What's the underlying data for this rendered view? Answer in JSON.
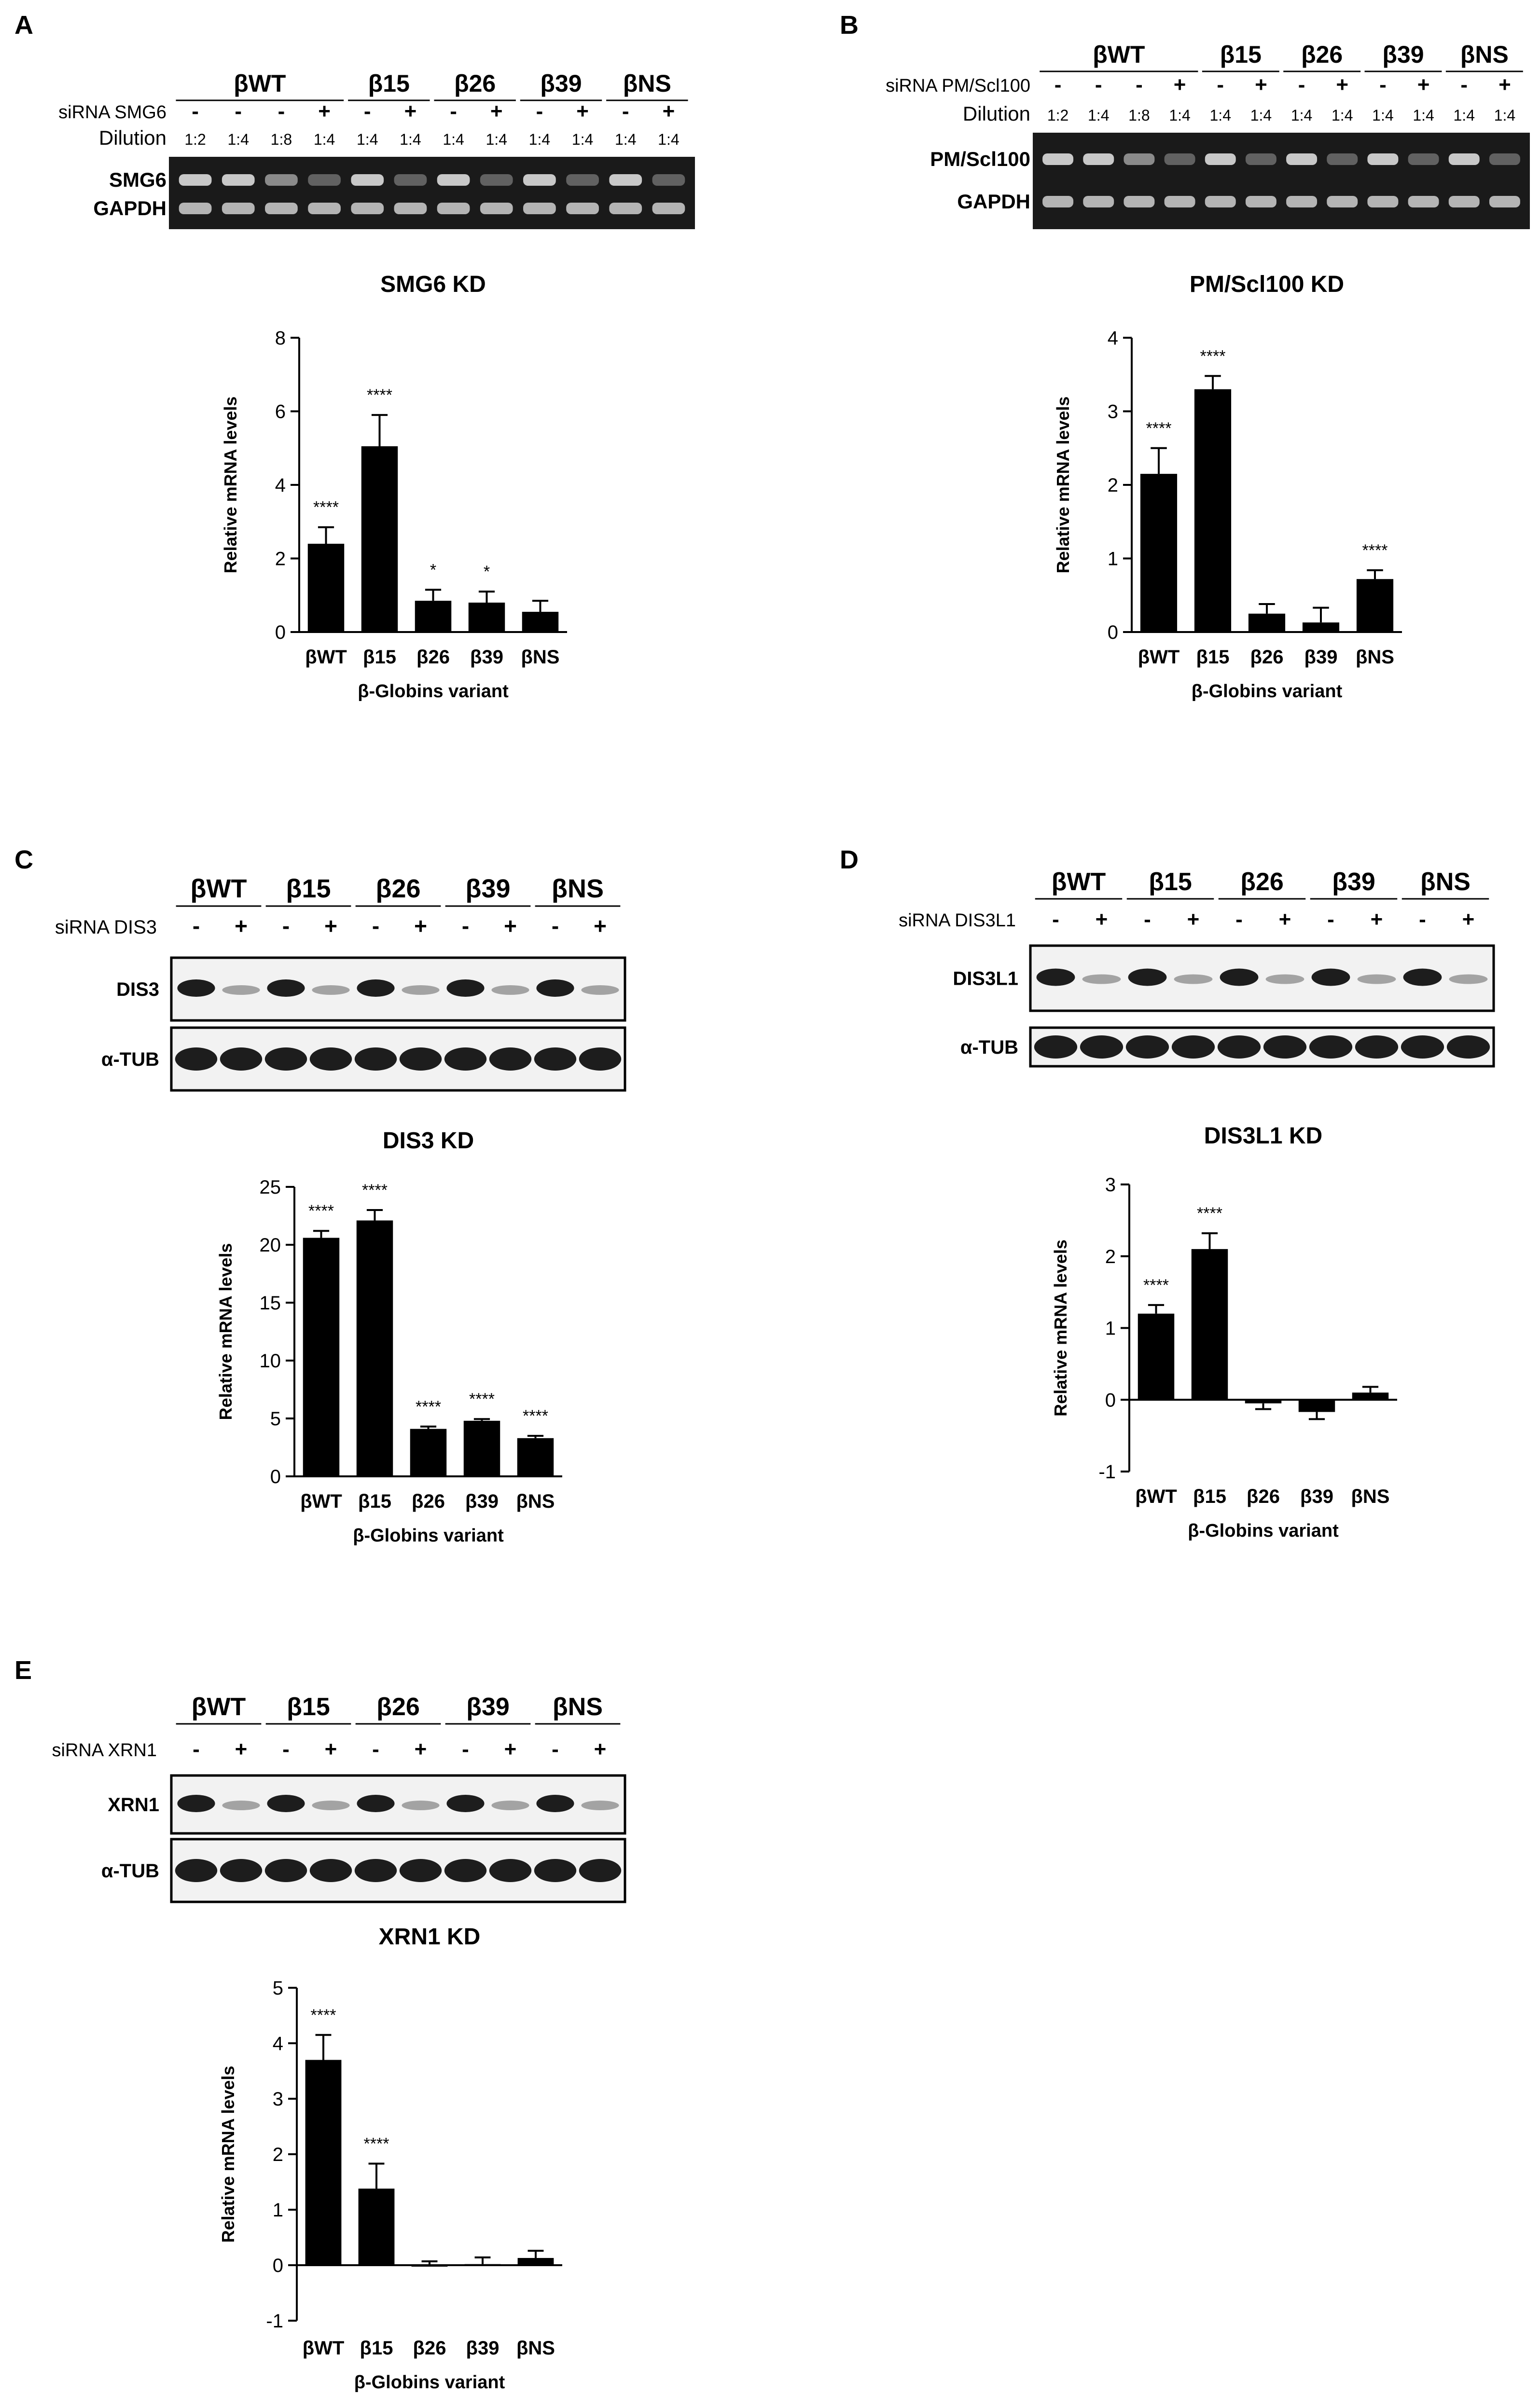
{
  "panels": [
    {
      "letter": "A",
      "blot": {
        "kind": "gel",
        "groups": [
          "βWT",
          "β15",
          "β26",
          "β39",
          "βNS"
        ],
        "treatment_label": "siRNA SMG6",
        "treatment": [
          "-",
          "-",
          "-",
          "+",
          "-",
          "+",
          "-",
          "+",
          "-",
          "+",
          "-",
          "+"
        ],
        "dilution_label": "Dilution",
        "dilutions": [
          "1:2",
          "1:4",
          "1:8",
          "1:4",
          "1:4",
          "1:4",
          "1:4",
          "1:4",
          "1:4",
          "1:4",
          "1:4",
          "1:4"
        ],
        "bands": [
          "SMG6",
          "GAPDH"
        ]
      }
    },
    {
      "letter": "B",
      "blot": {
        "kind": "gel",
        "groups": [
          "βWT",
          "β15",
          "β26",
          "β39",
          "βNS"
        ],
        "treatment_label": "siRNA PM/Scl100",
        "treatment": [
          "-",
          "-",
          "-",
          "+",
          "-",
          "+",
          "-",
          "+",
          "-",
          "+",
          "-",
          "+"
        ],
        "dilution_label": "Dilution",
        "dilutions": [
          "1:2",
          "1:4",
          "1:8",
          "1:4",
          "1:4",
          "1:4",
          "1:4",
          "1:4",
          "1:4",
          "1:4",
          "1:4",
          "1:4"
        ],
        "bands": [
          "PM/Scl100",
          "GAPDH"
        ]
      }
    },
    {
      "letter": "C",
      "blot": {
        "kind": "western",
        "groups": [
          "βWT",
          "β15",
          "β26",
          "β39",
          "βNS"
        ],
        "treatment_label": "siRNA DIS3",
        "treatment": [
          "-",
          "+",
          "-",
          "+",
          "-",
          "+",
          "-",
          "+",
          "-",
          "+"
        ],
        "bands": [
          "DIS3",
          "α-TUB"
        ]
      }
    },
    {
      "letter": "D",
      "blot": {
        "kind": "western",
        "groups": [
          "βWT",
          "β15",
          "β26",
          "β39",
          "βNS"
        ],
        "treatment_label": "siRNA DIS3L1",
        "treatment": [
          "-",
          "+",
          "-",
          "+",
          "-",
          "+",
          "-",
          "+",
          "-",
          "+"
        ],
        "bands": [
          "DIS3L1",
          "α-TUB"
        ]
      }
    },
    {
      "letter": "E",
      "blot": {
        "kind": "western",
        "groups": [
          "βWT",
          "β15",
          "β26",
          "β39",
          "βNS"
        ],
        "treatment_label": "siRNA XRN1",
        "treatment": [
          "-",
          "+",
          "-",
          "+",
          "-",
          "+",
          "-",
          "+",
          "-",
          "+"
        ],
        "bands": [
          "XRN1",
          "α-TUB"
        ]
      }
    }
  ],
  "chart_data": [
    {
      "type": "bar",
      "title": "SMG6 KD",
      "xlabel": "β-Globins variant",
      "ylabel": "Relative mRNA levels",
      "categories": [
        "βWT",
        "β15",
        "β26",
        "β39",
        "βNS"
      ],
      "values": [
        2.4,
        5.05,
        0.85,
        0.8,
        0.55
      ],
      "errors": [
        0.45,
        0.85,
        0.3,
        0.3,
        0.3
      ],
      "significance": [
        "****",
        "****",
        "*",
        "*",
        ""
      ],
      "ylim": [
        0,
        8
      ],
      "yticks": [
        0,
        2,
        4,
        6,
        8
      ]
    },
    {
      "type": "bar",
      "title": "PM/Scl100 KD",
      "xlabel": "β-Globins variant",
      "ylabel": "Relative mRNA levels",
      "categories": [
        "βWT",
        "β15",
        "β26",
        "β39",
        "βNS"
      ],
      "values": [
        2.15,
        3.3,
        0.25,
        0.13,
        0.72
      ],
      "errors": [
        0.35,
        0.18,
        0.13,
        0.2,
        0.12
      ],
      "significance": [
        "****",
        "****",
        "",
        "",
        "****"
      ],
      "ylim": [
        0,
        4
      ],
      "yticks": [
        0,
        1,
        2,
        3,
        4
      ]
    },
    {
      "type": "bar",
      "title": "DIS3 KD",
      "xlabel": "β-Globins variant",
      "ylabel": "Relative mRNA levels",
      "categories": [
        "βWT",
        "β15",
        "β26",
        "β39",
        "βNS"
      ],
      "values": [
        20.6,
        22.1,
        4.1,
        4.8,
        3.3
      ],
      "errors": [
        0.6,
        0.9,
        0.2,
        0.15,
        0.2
      ],
      "significance": [
        "****",
        "****",
        "****",
        "****",
        "****"
      ],
      "ylim": [
        0,
        25
      ],
      "yticks": [
        0,
        5,
        10,
        15,
        20,
        25
      ]
    },
    {
      "type": "bar",
      "title": "DIS3L1 KD",
      "xlabel": "β-Globins variant",
      "ylabel": "Relative mRNA levels",
      "categories": [
        "βWT",
        "β15",
        "β26",
        "β39",
        "βNS"
      ],
      "values": [
        1.2,
        2.1,
        -0.05,
        -0.17,
        0.1
      ],
      "errors": [
        0.12,
        0.22,
        0.08,
        0.1,
        0.08
      ],
      "significance": [
        "****",
        "****",
        "",
        "",
        ""
      ],
      "ylim": [
        -1,
        3
      ],
      "yticks": [
        -1,
        0,
        1,
        2,
        3
      ]
    },
    {
      "type": "bar",
      "title": "XRN1 KD",
      "xlabel": "β-Globins variant",
      "ylabel": "Relative mRNA levels",
      "categories": [
        "βWT",
        "β15",
        "β26",
        "β39",
        "βNS"
      ],
      "values": [
        3.7,
        1.38,
        0.0,
        0.02,
        0.13
      ],
      "errors": [
        0.45,
        0.45,
        0.07,
        0.12,
        0.13
      ],
      "significance": [
        "****",
        "****",
        "",
        "",
        ""
      ],
      "ylim": [
        -1,
        5
      ],
      "yticks": [
        -1,
        0,
        1,
        2,
        3,
        4,
        5
      ]
    }
  ]
}
